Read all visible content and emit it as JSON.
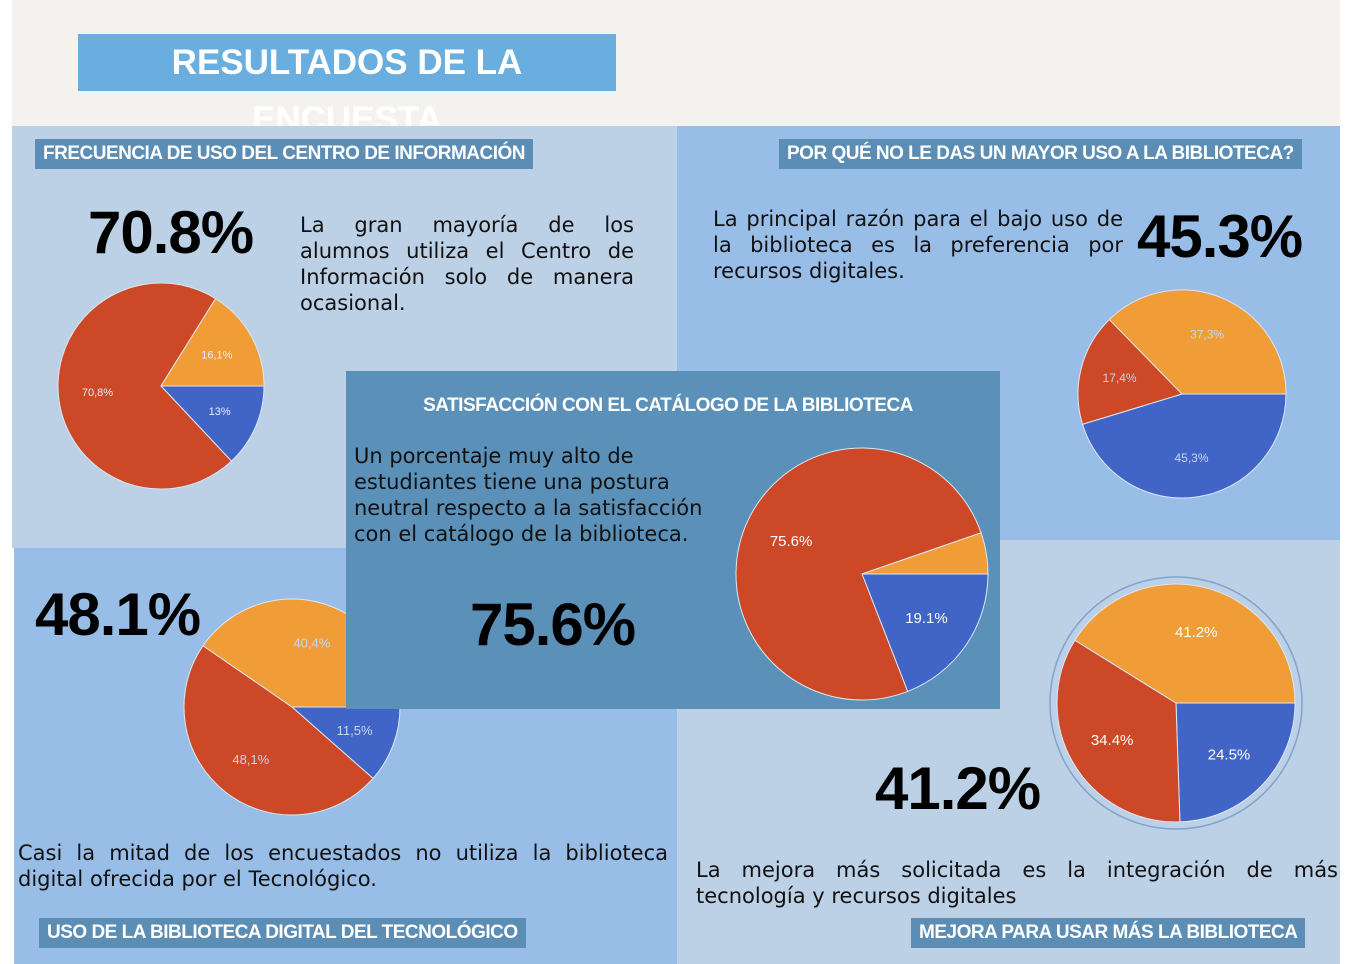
{
  "title": "RESULTADOS DE LA ENCUESTA",
  "sections": {
    "frecuencia": {
      "label": "FRECUENCIA DE USO DEL CENTRO DE INFORMACIÓN",
      "big": "70.8%",
      "text": "La gran mayoría de los alumnos utiliza el Centro de Información solo de manera ocasional."
    },
    "porque": {
      "label": "POR QUÉ NO LE DAS UN MAYOR USO A LA BIBLIOTECA?",
      "big": "45.3%",
      "text": "La principal razón para el bajo uso de la biblioteca es la preferencia por recursos digitales."
    },
    "satisfaccion": {
      "label": "SATISFACCIÓN CON EL CATÁLOGO DE LA BIBLIOTECA",
      "big": "75.6%",
      "text": "Un porcentaje muy alto de estudiantes tiene una postura neutral respecto a la satisfacción con el catálogo de la biblioteca."
    },
    "digital": {
      "label": "USO DE LA BIBLIOTECA DIGITAL DEL TECNOLÓGICO",
      "big": "48.1%",
      "text": "Casi la mitad de los encuestados no utiliza la biblioteca digital ofrecida por el Tecnológico."
    },
    "mejora": {
      "label": "MEJORA PARA USAR MÁS LA BIBLIOTECA",
      "big": "41.2%",
      "text": "La mejora más solicitada es la integración de más tecnología y recursos digitales"
    }
  },
  "colors": {
    "blue": "#4065c6",
    "red": "#cc4827",
    "orange": "#f09d38"
  },
  "chart_data": [
    {
      "type": "pie",
      "id": "frecuencia",
      "values": [
        13,
        70.8,
        16.1
      ],
      "labels": [
        "13%",
        "70,8%",
        "16,1%"
      ],
      "colors": [
        "#4065c6",
        "#cc4827",
        "#f09d38"
      ]
    },
    {
      "type": "pie",
      "id": "porque",
      "values": [
        45.3,
        17.4,
        37.3
      ],
      "labels": [
        "45,3%",
        "17,4%",
        "37,3%"
      ],
      "colors": [
        "#4065c6",
        "#cc4827",
        "#f09d38"
      ]
    },
    {
      "type": "pie",
      "id": "satisfaccion",
      "values": [
        19.1,
        75.6,
        5.3
      ],
      "labels": [
        "19.1%",
        "75.6%",
        ""
      ],
      "colors": [
        "#4065c6",
        "#cc4827",
        "#f09d38"
      ]
    },
    {
      "type": "pie",
      "id": "digital",
      "values": [
        11.5,
        48.1,
        40.4
      ],
      "labels": [
        "11,5%",
        "48,1%",
        "40,4%"
      ],
      "colors": [
        "#4065c6",
        "#cc4827",
        "#f09d38"
      ]
    },
    {
      "type": "pie",
      "id": "mejora",
      "values": [
        24.5,
        34.4,
        41.2
      ],
      "labels": [
        "24.5%",
        "34.4%",
        "41.2%"
      ],
      "colors": [
        "#4065c6",
        "#cc4827",
        "#f09d38"
      ]
    }
  ]
}
